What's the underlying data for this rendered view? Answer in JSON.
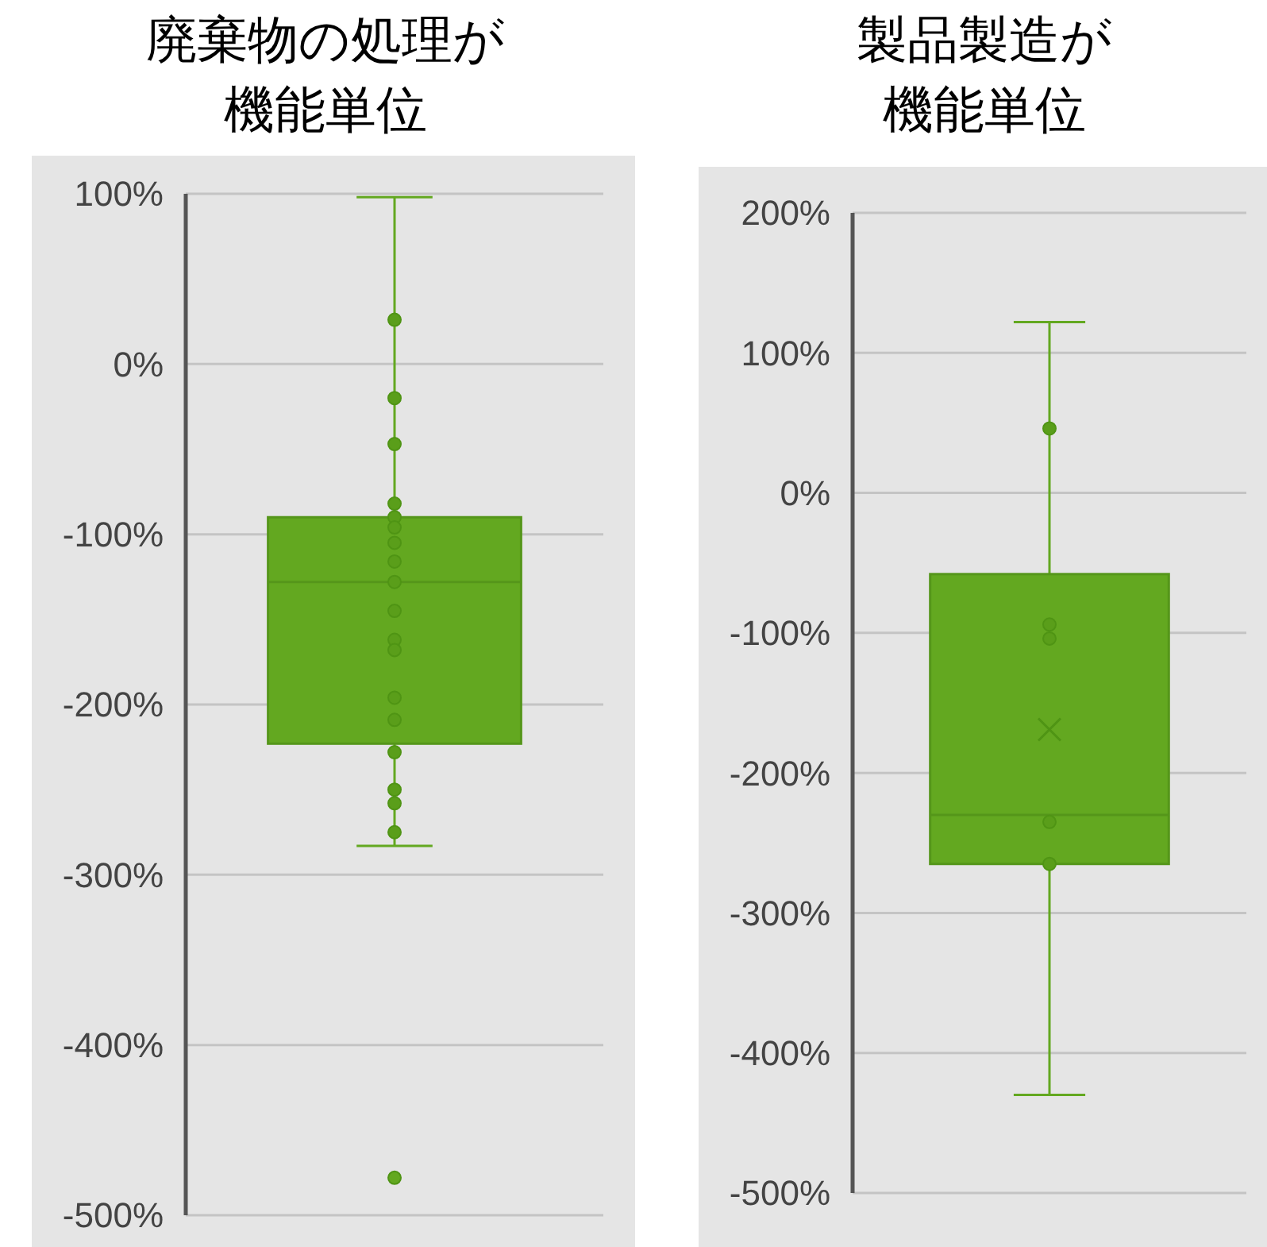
{
  "chart_data": [
    {
      "type": "box",
      "title": "廃棄物の処理が機能単位",
      "categories": [
        null
      ],
      "ylim": [
        -500,
        100
      ],
      "yticks": [
        {
          "value": 100,
          "label": "100%"
        },
        {
          "value": 0,
          "label": "0%"
        },
        {
          "value": -100,
          "label": "-100%"
        },
        {
          "value": -200,
          "label": "-200%"
        },
        {
          "value": -300,
          "label": "-300%"
        },
        {
          "value": -400,
          "label": "-400%"
        },
        {
          "value": -500,
          "label": "-500%"
        }
      ],
      "grid": "y",
      "tick_labels": "y",
      "series": [
        {
          "type": "box",
          "color": "#63a820",
          "boxes": [
            {
              "low": -283,
              "q1": -223,
              "median": -128,
              "q3": -90,
              "high": 98,
              "outliers": [
                -478
              ]
            }
          ]
        },
        {
          "type": "scatter",
          "color": "#5a9e1a",
          "x": [
            null,
            null,
            null,
            null,
            null,
            null,
            null,
            null,
            null,
            null,
            null,
            null,
            null,
            null,
            null,
            null,
            null,
            null
          ],
          "values": [
            26,
            -20,
            -47,
            -82,
            -90,
            -96,
            -105,
            -116,
            -128,
            -145,
            -162,
            -168,
            -196,
            -209,
            -228,
            -250,
            -258,
            -275
          ]
        }
      ]
    },
    {
      "type": "box",
      "title": "製品製造が機能単位",
      "categories": [
        null
      ],
      "ylim": [
        -500,
        200
      ],
      "yticks": [
        {
          "value": 200,
          "label": "200%"
        },
        {
          "value": 100,
          "label": "100%"
        },
        {
          "value": 0,
          "label": "0%"
        },
        {
          "value": -100,
          "label": "-100%"
        },
        {
          "value": -200,
          "label": "-200%"
        },
        {
          "value": -300,
          "label": "-300%"
        },
        {
          "value": -400,
          "label": "-400%"
        },
        {
          "value": -500,
          "label": "-500%"
        }
      ],
      "grid": "y",
      "tick_labels": "y",
      "series": [
        {
          "type": "box",
          "color": "#63a820",
          "boxes": [
            {
              "low": -430,
              "q1": -265,
              "median": -230,
              "q3": -58,
              "high": 122,
              "mean": -169
            }
          ]
        },
        {
          "type": "scatter",
          "color": "#5a9e1a",
          "x": [
            null,
            null,
            null,
            null,
            null
          ],
          "values": [
            46,
            -94,
            -104,
            -235,
            -265
          ]
        }
      ]
    }
  ]
}
